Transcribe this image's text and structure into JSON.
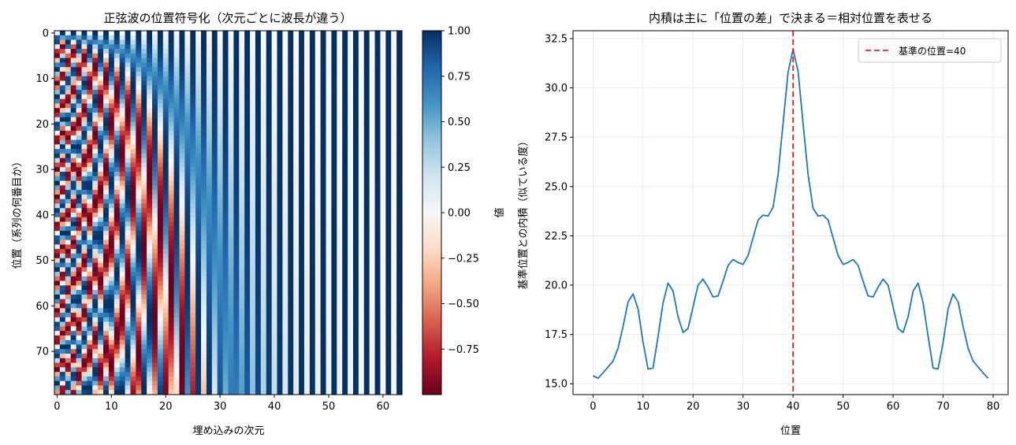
{
  "chart_data": [
    {
      "type": "heatmap",
      "title": "正弦波の位置符号化（次元ごとに波長が違う）",
      "xlabel": "埋め込みの次元",
      "ylabel": "位置（系列の何番目か）",
      "n_positions": 80,
      "n_dims": 64,
      "encoding": "sinusoidal",
      "colormap": "RdBu",
      "vmin": -1.0,
      "vmax": 1.0,
      "xticks": [
        0,
        10,
        20,
        30,
        40,
        50,
        60
      ],
      "yticks": [
        0,
        10,
        20,
        30,
        40,
        50,
        60,
        70
      ],
      "colorbar": {
        "label": "値",
        "ticks": [
          1.0,
          0.75,
          0.5,
          0.25,
          0.0,
          -0.25,
          -0.5,
          -0.75
        ],
        "tick_labels": [
          "1.00",
          "0.75",
          "0.50",
          "0.25",
          "0.00",
          "−0.25",
          "−0.50",
          "−0.75"
        ]
      }
    },
    {
      "type": "line",
      "title": "内積は主に「位置の差」で決まる＝相対位置を表せる",
      "xlabel": "位置",
      "ylabel": "基準位置との内積（似ている度）",
      "xlim": [
        -4,
        83
      ],
      "ylim": [
        14.45,
        32.9
      ],
      "grid": true,
      "legend_placement": "top-right",
      "xticks": [
        0,
        10,
        20,
        30,
        40,
        50,
        60,
        70,
        80
      ],
      "yticks": [
        15.0,
        17.5,
        20.0,
        22.5,
        25.0,
        27.5,
        30.0,
        32.5
      ],
      "ytick_labels": [
        "15.0",
        "17.5",
        "20.0",
        "22.5",
        "25.0",
        "27.5",
        "30.0",
        "32.5"
      ],
      "series": [
        {
          "color": "#1f77b4",
          "x": [
            0,
            1,
            2,
            3,
            4,
            5,
            6,
            7,
            8,
            9,
            10,
            11,
            12,
            13,
            14,
            15,
            16,
            17,
            18,
            19,
            20,
            21,
            22,
            23,
            24,
            25,
            26,
            27,
            28,
            29,
            30,
            31,
            32,
            33,
            34,
            35,
            36,
            37,
            38,
            39,
            40,
            41,
            42,
            43,
            44,
            45,
            46,
            47,
            48,
            49,
            50,
            51,
            52,
            53,
            54,
            55,
            56,
            57,
            58,
            59,
            60,
            61,
            62,
            63,
            64,
            65,
            66,
            67,
            68,
            69,
            70,
            71,
            72,
            73,
            74,
            75,
            76,
            77,
            78,
            79
          ],
          "y": [
            15.4,
            15.28,
            15.55,
            15.85,
            16.15,
            16.8,
            17.9,
            19.15,
            19.55,
            18.8,
            17.1,
            15.75,
            15.8,
            17.4,
            19.1,
            20.1,
            19.7,
            18.4,
            17.6,
            17.8,
            18.9,
            20.0,
            20.3,
            19.9,
            19.4,
            19.45,
            20.2,
            21.0,
            21.3,
            21.15,
            21.05,
            21.5,
            22.4,
            23.3,
            23.55,
            23.5,
            23.95,
            25.6,
            28.2,
            30.8,
            31.95,
            30.85,
            28.2,
            25.6,
            23.9,
            23.5,
            23.55,
            23.3,
            22.4,
            21.5,
            21.05,
            21.15,
            21.3,
            21.0,
            20.2,
            19.45,
            19.4,
            19.9,
            20.3,
            20.0,
            18.9,
            17.8,
            17.6,
            18.4,
            19.7,
            20.1,
            19.1,
            17.4,
            15.8,
            15.75,
            17.1,
            18.8,
            19.55,
            19.15,
            17.9,
            16.8,
            16.15,
            15.85,
            15.55,
            15.28
          ]
        }
      ],
      "reference_line": {
        "x": 40,
        "color": "#d62728",
        "legend_label": "基準の位置=40"
      }
    }
  ]
}
